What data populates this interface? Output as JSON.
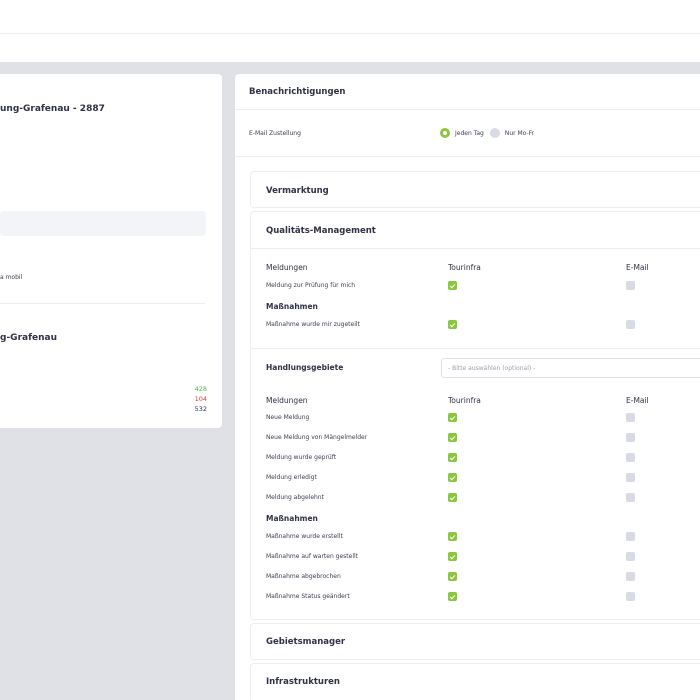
{
  "left_panel": {
    "title": "ung-Grafenau - 2887",
    "mobil_text": "a mobil",
    "title2": "g-Grafenau",
    "stats": [
      "428",
      "104",
      "532"
    ]
  },
  "notifications": {
    "title": "Benachrichtigungen",
    "email_delivery_label": "E-Mail Zustellung",
    "radio_options": [
      "Jeden Tag",
      "Nur Mo-Fr"
    ],
    "selected_option": "Jeden Tag"
  },
  "sections": {
    "vermarktung": "Vermarktung",
    "qualitaet": {
      "title": "Qualitäts-Management",
      "col_meldungen": "Meldungen",
      "col_tourinfra": "Tourinfra",
      "col_email": "E-Mail",
      "rows1": [
        {
          "label": "Meldung zur Prüfung für mich",
          "tourinfra": true,
          "email": false
        }
      ],
      "group_massnahmen": "Maßnahmen",
      "rows2": [
        {
          "label": "Maßnahme wurde mir zugeteilt",
          "tourinfra": true,
          "email": false
        }
      ]
    },
    "handlungsgebiete": {
      "title": "Handlungsgebiete",
      "select_placeholder": "- Bitte auswählen (optional) -",
      "col_meldungen": "Meldungen",
      "col_tourinfra": "Tourinfra",
      "col_email": "E-Mail",
      "rows_meldungen": [
        {
          "label": "Neue Meldung",
          "tourinfra": true,
          "email": false
        },
        {
          "label": "Neue Meldung von Mängelmelder",
          "tourinfra": true,
          "email": false
        },
        {
          "label": "Meldung wurde geprüft",
          "tourinfra": true,
          "email": false
        },
        {
          "label": "Meldung erledigt",
          "tourinfra": true,
          "email": false
        },
        {
          "label": "Meldung abgelehnt",
          "tourinfra": true,
          "email": false
        }
      ],
      "group_massnahmen": "Maßnahmen",
      "rows_massnahmen": [
        {
          "label": "Maßnahme wurde erstellt",
          "tourinfra": true,
          "email": false
        },
        {
          "label": "Maßnahme auf warten gestellt",
          "tourinfra": true,
          "email": false
        },
        {
          "label": "Maßnahme abgebrochen",
          "tourinfra": true,
          "email": false
        },
        {
          "label": "Maßnahme Status geändert",
          "tourinfra": true,
          "email": false
        }
      ]
    },
    "gebietsmanager": "Gebietsmanager",
    "infrastrukturen": "Infrastrukturen"
  },
  "colors": {
    "accent_green": "#8cc63f",
    "stat_green": "#53b24a",
    "stat_red": "#e03b3b",
    "checkbox_off": "#d8dbe3"
  },
  "icons": {
    "checked": "check-icon"
  }
}
